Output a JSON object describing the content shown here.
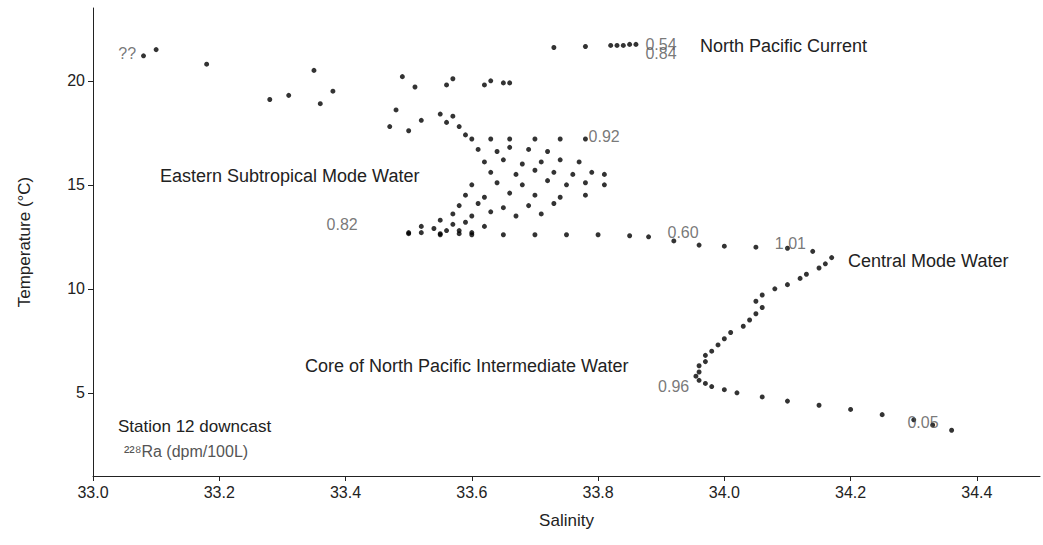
{
  "chart_data": {
    "type": "scatter",
    "x_label": "Salinity",
    "y_label": "Temperature (°C)",
    "xlim": [
      33.0,
      34.5
    ],
    "ylim": [
      1,
      23.5
    ],
    "xticks": [
      {
        "value": 33.0,
        "label": "33.0"
      },
      {
        "value": 33.2,
        "label": "33.2"
      },
      {
        "value": 33.4,
        "label": "33.4"
      },
      {
        "value": 33.6,
        "label": "33.6"
      },
      {
        "value": 33.8,
        "label": "33.8"
      },
      {
        "value": 34.0,
        "label": "34.0"
      },
      {
        "value": 34.2,
        "label": "34.2"
      },
      {
        "value": 34.4,
        "label": "34.4"
      }
    ],
    "yticks": [
      5,
      10,
      15,
      20
    ],
    "grid": false,
    "series": [
      {
        "color": "#000000",
        "marker": "circle",
        "x": [
          33.08,
          33.1,
          33.18,
          33.28,
          33.31,
          33.35,
          33.36,
          33.38,
          33.49,
          33.51,
          33.56,
          33.57,
          33.62,
          33.63,
          33.65,
          33.66,
          33.73,
          33.78,
          33.82,
          33.83,
          33.84,
          33.85,
          33.86,
          33.47,
          33.48,
          33.5,
          33.52,
          33.55,
          33.56,
          33.57,
          33.58,
          33.59,
          33.6,
          33.63,
          33.66,
          33.7,
          33.74,
          33.78,
          33.61,
          33.64,
          33.66,
          33.69,
          33.72,
          33.62,
          33.65,
          33.68,
          33.71,
          33.74,
          33.77,
          33.63,
          33.67,
          33.7,
          33.73,
          33.76,
          33.79,
          33.81,
          33.6,
          33.64,
          33.68,
          33.72,
          33.75,
          33.78,
          33.81,
          33.59,
          33.62,
          33.66,
          33.7,
          33.74,
          33.78,
          33.58,
          33.61,
          33.65,
          33.69,
          33.73,
          33.57,
          33.6,
          33.63,
          33.67,
          33.71,
          33.55,
          33.57,
          33.59,
          33.62,
          33.52,
          33.54,
          33.56,
          33.58,
          33.5,
          33.52,
          33.55,
          33.58,
          33.6,
          33.5,
          33.55,
          33.6,
          33.65,
          33.7,
          33.75,
          33.8,
          33.85,
          33.88,
          33.92,
          33.96,
          34.0,
          34.05,
          34.1,
          34.14,
          34.17,
          34.16,
          34.15,
          34.13,
          34.12,
          34.1,
          34.08,
          34.06,
          34.05,
          34.06,
          34.05,
          34.04,
          34.03,
          34.01,
          34.0,
          33.99,
          33.98,
          33.97,
          33.97,
          33.96,
          33.96,
          33.955,
          33.96,
          33.97,
          33.98,
          34.0,
          34.02,
          34.06,
          34.1,
          34.15,
          34.2,
          34.25,
          34.3,
          34.33,
          34.36
        ],
        "y": [
          21.2,
          21.5,
          20.8,
          19.1,
          19.3,
          20.5,
          18.9,
          19.5,
          20.2,
          19.7,
          19.8,
          20.1,
          19.8,
          20.0,
          19.9,
          19.9,
          21.6,
          21.65,
          21.7,
          21.7,
          21.7,
          21.75,
          21.75,
          17.8,
          18.6,
          17.6,
          18.1,
          18.4,
          18.0,
          18.3,
          17.8,
          17.4,
          17.2,
          17.2,
          17.2,
          17.2,
          17.2,
          17.2,
          16.7,
          16.6,
          16.8,
          16.7,
          16.6,
          16.1,
          16.2,
          16.0,
          16.1,
          16.2,
          16.1,
          15.6,
          15.5,
          15.7,
          15.6,
          15.5,
          15.6,
          15.5,
          15.0,
          15.1,
          15.0,
          15.2,
          15.0,
          15.1,
          15.0,
          14.5,
          14.4,
          14.6,
          14.5,
          14.4,
          14.5,
          14.0,
          14.1,
          13.9,
          14.0,
          14.1,
          13.6,
          13.5,
          13.7,
          13.5,
          13.6,
          13.3,
          13.1,
          13.2,
          13.0,
          13.0,
          12.9,
          12.8,
          12.8,
          12.7,
          12.7,
          12.65,
          12.65,
          12.7,
          12.65,
          12.6,
          12.6,
          12.6,
          12.6,
          12.6,
          12.6,
          12.55,
          12.5,
          12.3,
          12.1,
          12.05,
          12.0,
          11.95,
          11.8,
          11.5,
          11.2,
          11.0,
          10.7,
          10.5,
          10.2,
          10.0,
          9.7,
          9.4,
          9.1,
          8.8,
          8.5,
          8.2,
          7.9,
          7.6,
          7.3,
          7.0,
          6.8,
          6.5,
          6.3,
          6.0,
          5.8,
          5.6,
          5.45,
          5.3,
          5.15,
          5.0,
          4.8,
          4.6,
          4.4,
          4.2,
          3.95,
          3.7,
          3.45,
          3.2
        ]
      }
    ],
    "ra_samples": [
      {
        "salinity": 33.875,
        "temperature": 21.75,
        "value": 0.54,
        "label": "0.54"
      },
      {
        "salinity": 33.875,
        "temperature": 21.3,
        "value": 0.84,
        "label": "0.84"
      },
      {
        "salinity": 33.785,
        "temperature": 17.3,
        "value": 0.92,
        "label": "0.92"
      },
      {
        "salinity": 33.37,
        "temperature": 13.1,
        "value": 0.82,
        "label": "0.82"
      },
      {
        "salinity": 33.91,
        "temperature": 12.7,
        "value": 0.6,
        "label": "0.60"
      },
      {
        "salinity": 34.08,
        "temperature": 12.2,
        "value": 1.01,
        "label": "1.01"
      },
      {
        "salinity": 33.895,
        "temperature": 5.3,
        "value": 0.96,
        "label": "0.96"
      },
      {
        "salinity": 34.29,
        "temperature": 3.55,
        "value": 0.05,
        "label": "0.05"
      },
      {
        "salinity": 33.04,
        "temperature": 21.3,
        "value": null,
        "label": "??"
      }
    ],
    "annotations": [
      "North Pacific Current",
      "Eastern Subtropical Mode Water",
      "Central Mode Water",
      "Core of North Pacific Intermediate Water",
      "Station 12 downcast",
      "²²⁸Ra (dpm/100L)"
    ]
  }
}
